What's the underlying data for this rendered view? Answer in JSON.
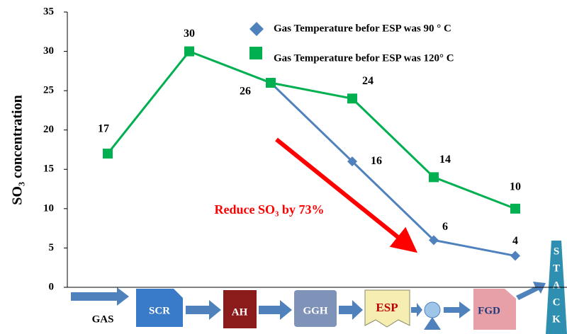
{
  "chart_data": {
    "type": "line",
    "y_label": "SO₃ concentration",
    "annotation": "Reduce SO₃ by 73%",
    "categories": [
      null,
      null,
      null,
      null,
      null,
      null
    ],
    "series": [
      {
        "name": "Gas Temperature befor ESP was 90 ° C",
        "color": "#4f81bd",
        "marker": "diamond",
        "values": [
          null,
          null,
          26,
          16,
          6,
          4
        ],
        "value_labels": [
          null,
          null,
          null,
          "16",
          "6",
          "4"
        ]
      },
      {
        "name": "Gas Temperature befor ESP was 120° C",
        "color": "#00b050",
        "marker": "square",
        "values": [
          17,
          30,
          26,
          24,
          14,
          10
        ],
        "value_labels": [
          "17",
          "30",
          "26",
          "24",
          "14",
          "10"
        ]
      }
    ],
    "ylim": [
      0,
      35
    ],
    "yticks": [
      0,
      5,
      10,
      15,
      20,
      25,
      30,
      35
    ],
    "grid": false
  },
  "process_flow": {
    "labels": [
      "GAS",
      "SCR",
      "AH",
      "GGH",
      "ESP",
      "FGD",
      "S",
      "T",
      "A",
      "C",
      "K"
    ]
  }
}
